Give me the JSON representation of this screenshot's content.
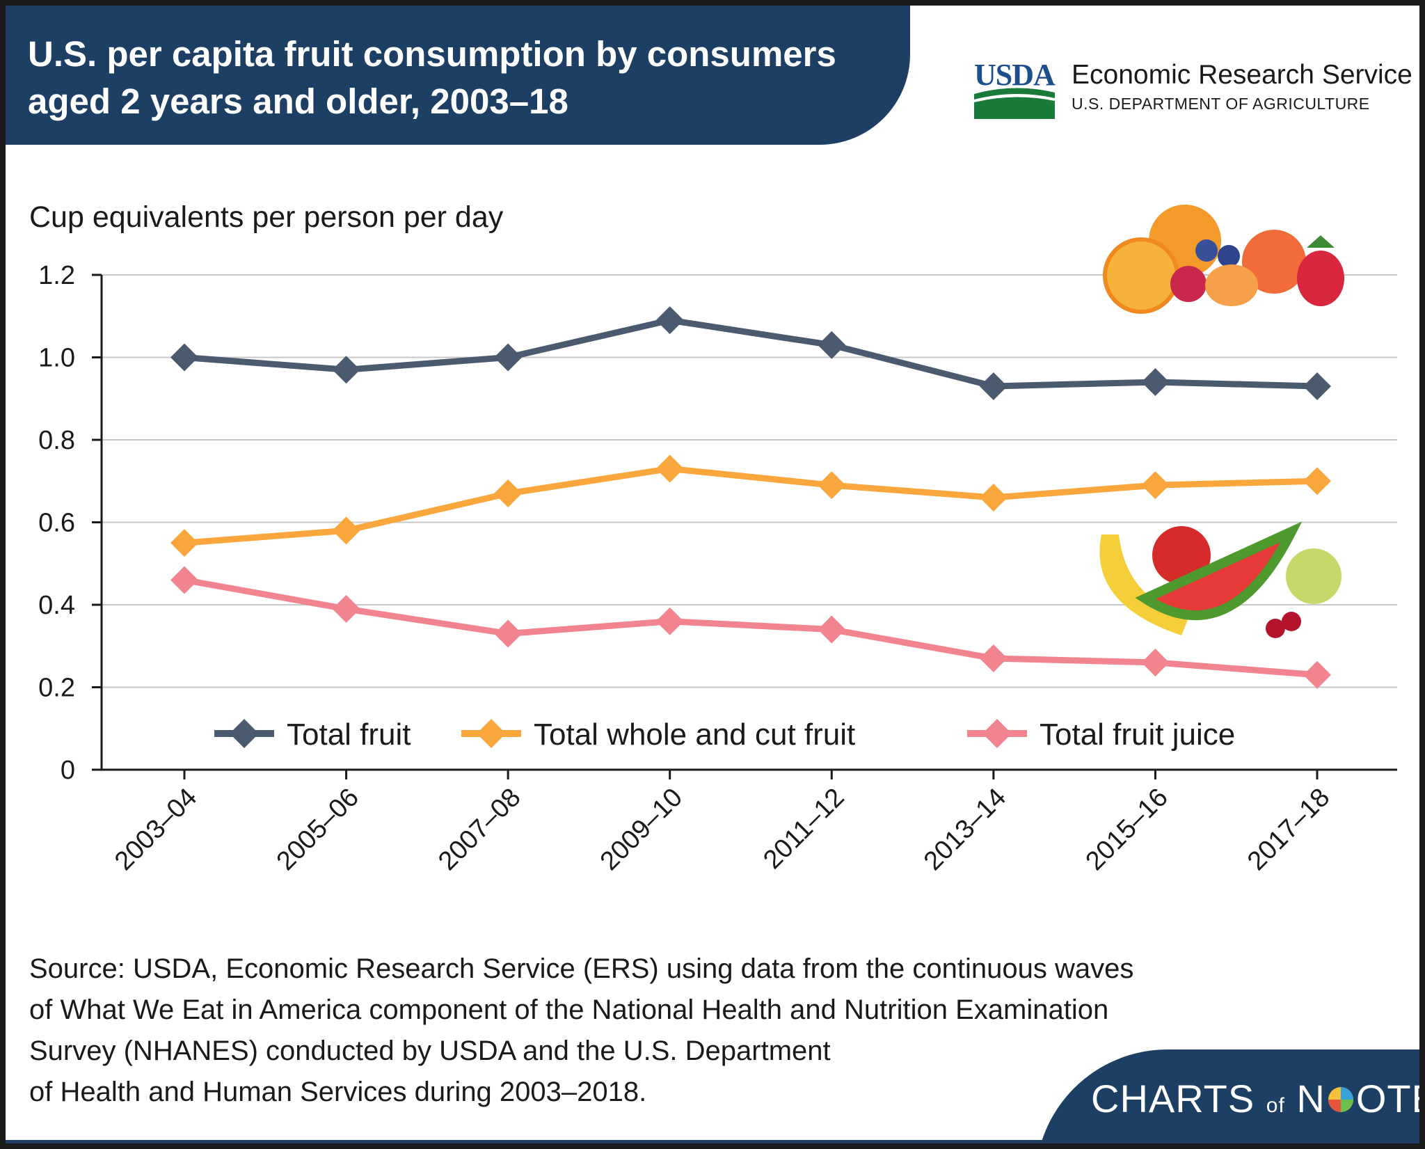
{
  "header": {
    "title": "U.S. per capita fruit consumption by consumers aged 2 years and older, 2003–18",
    "agency_logo": "USDA",
    "agency_name": "Economic Research Service",
    "department": "U.S. DEPARTMENT OF AGRICULTURE"
  },
  "colors": {
    "header_background": "#1d3f63",
    "total_fruit": "#4a5a6f",
    "whole_cut_fruit": "#f9a63c",
    "fruit_juice": "#f2848f",
    "gridline": "#c8c8c8",
    "usda_blue": "#1d4f8c",
    "usda_green": "#1a7a3a"
  },
  "chart_data": {
    "type": "line",
    "title": "U.S. per capita fruit consumption by consumers aged 2 years and older, 2003–18",
    "ylabel": "Cup equivalents per person per day",
    "xlabel": "",
    "categories": [
      "2003–04",
      "2005–06",
      "2007–08",
      "2009–10",
      "2011–12",
      "2013–14",
      "2015–16",
      "2017–18"
    ],
    "ylim": [
      0,
      1.2
    ],
    "yticks": [
      "0",
      "0.2",
      "0.4",
      "0.6",
      "0.8",
      "1.0",
      "1.2"
    ],
    "grid": true,
    "legend_position": "bottom, inside plot",
    "marker": "diamond",
    "series": [
      {
        "name": "Total fruit",
        "color": "#4a5a6f",
        "values": [
          1.0,
          0.97,
          1.0,
          1.09,
          1.03,
          0.93,
          0.94,
          0.93
        ]
      },
      {
        "name": "Total whole and cut fruit",
        "color": "#f9a63c",
        "values": [
          0.55,
          0.58,
          0.67,
          0.73,
          0.69,
          0.66,
          0.69,
          0.7
        ]
      },
      {
        "name": "Total fruit juice",
        "color": "#f2848f",
        "values": [
          0.46,
          0.39,
          0.33,
          0.36,
          0.34,
          0.27,
          0.26,
          0.23
        ]
      }
    ]
  },
  "source": {
    "lines": [
      "Source: USDA, Economic Research Service (ERS) using data from the continuous waves",
      "of What We Eat in America component of the National Health and Nutrition Examination",
      "Survey (NHANES) conducted by USDA and the U.S. Department",
      "of Health and Human Services during 2003–2018."
    ]
  },
  "branding": {
    "charts": "CHARTS",
    "of": "of",
    "n": "N",
    "ote": "OTE"
  },
  "decorations": {
    "top_illustration": "citrus-berries-illustration",
    "bottom_illustration": "banana-apple-watermelon-grapes-illustration"
  }
}
